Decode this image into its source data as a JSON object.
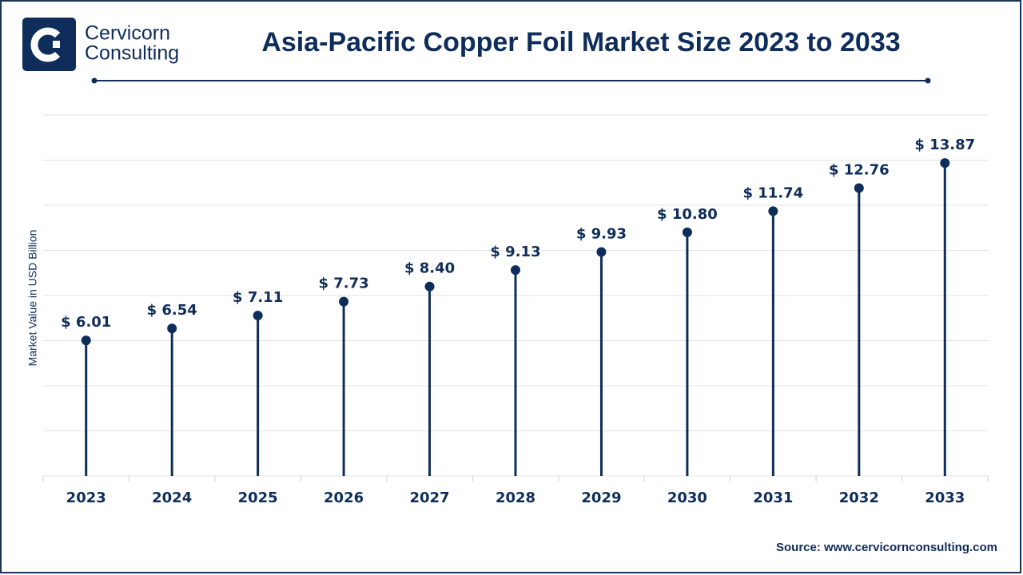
{
  "logo": {
    "lines": [
      "Cervicorn",
      "Consulting"
    ]
  },
  "chart_data": {
    "type": "lollipop",
    "title": "Asia-Pacific Copper Foil Market Size 2023 to 2033",
    "y_label": "Market Value in USD Billion",
    "categories": [
      "2023",
      "2024",
      "2025",
      "2026",
      "2027",
      "2028",
      "2029",
      "2030",
      "2031",
      "2032",
      "2033"
    ],
    "values": [
      6.01,
      6.54,
      7.11,
      7.73,
      8.4,
      9.13,
      9.93,
      10.8,
      11.74,
      12.76,
      13.87
    ],
    "value_labels": [
      "$ 6.01",
      "$ 6.54",
      "$ 7.11",
      "$ 7.73",
      "$ 8.40",
      "$ 9.13",
      "$ 9.93",
      "$ 10.80",
      "$ 11.74",
      "$ 12.76",
      "$ 13.87"
    ],
    "color": "#0f2d5a",
    "ylim": [
      0,
      16
    ],
    "yticks": [
      0,
      2,
      4,
      6,
      8,
      10,
      12,
      14,
      16
    ],
    "grid": true,
    "source": "Source: www.cervicornconsulting.com"
  }
}
